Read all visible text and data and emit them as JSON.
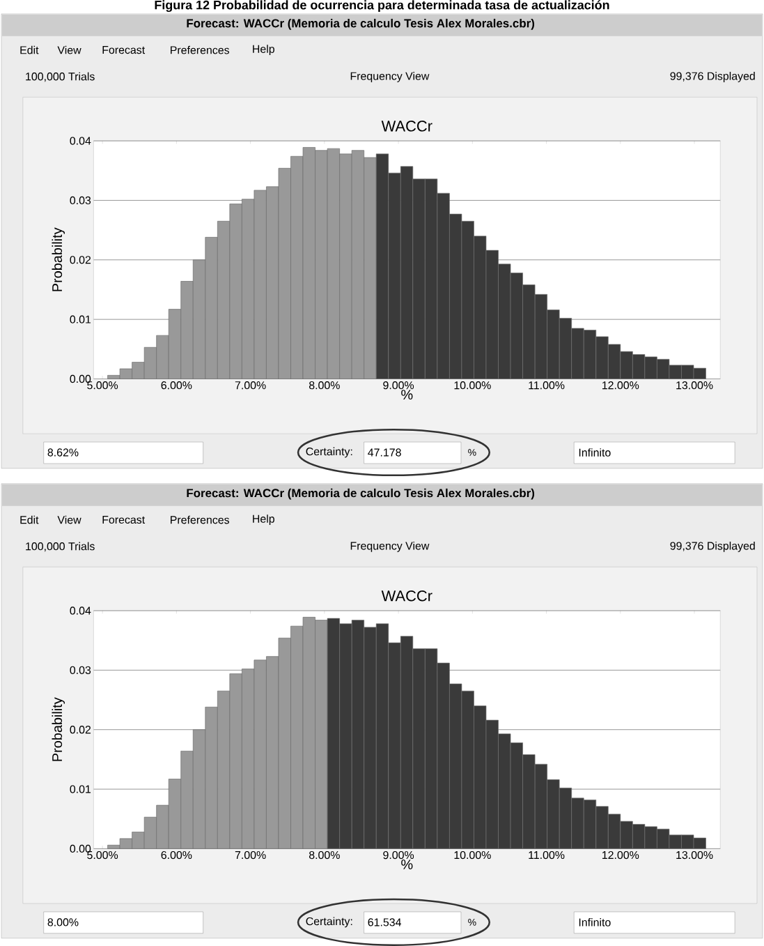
{
  "chart_data": [
    {
      "type": "histogram",
      "title": "WACCr",
      "xlabel": "%",
      "ylabel": "Probability",
      "bins": [
        5.07,
        5.235,
        5.4,
        5.565,
        5.73,
        5.895,
        6.06,
        6.225,
        6.39,
        6.555,
        6.72,
        6.885,
        7.05,
        7.215,
        7.38,
        7.545,
        7.71,
        7.875,
        8.04,
        8.205,
        8.37,
        8.535,
        8.7,
        8.865,
        9.03,
        9.195,
        9.36,
        9.525,
        9.69,
        9.855,
        10.02,
        10.185,
        10.35,
        10.515,
        10.68,
        10.845,
        11.01,
        11.175,
        11.34,
        11.505,
        11.67,
        11.835,
        12.0,
        12.165,
        12.33,
        12.495,
        12.66,
        12.825,
        12.99,
        13.155
      ],
      "values": [
        0.0006,
        0.0017,
        0.0028,
        0.0053,
        0.0073,
        0.0117,
        0.0164,
        0.02,
        0.0238,
        0.0265,
        0.0294,
        0.0302,
        0.0317,
        0.0323,
        0.0354,
        0.0374,
        0.0389,
        0.0384,
        0.0387,
        0.0378,
        0.0384,
        0.0372,
        0.0378,
        0.0346,
        0.0357,
        0.0336,
        0.0336,
        0.0312,
        0.0277,
        0.0265,
        0.024,
        0.0216,
        0.0193,
        0.0178,
        0.0158,
        0.0142,
        0.0116,
        0.0102,
        0.0085,
        0.0082,
        0.0071,
        0.0058,
        0.0046,
        0.0041,
        0.0037,
        0.0033,
        0.0023,
        0.0023,
        0.0018
      ],
      "colors": [
        "#999999",
        "#999999",
        "#999999",
        "#999999",
        "#999999",
        "#999999",
        "#999999",
        "#999999",
        "#999999",
        "#999999",
        "#999999",
        "#999999",
        "#999999",
        "#999999",
        "#999999",
        "#999999",
        "#999999",
        "#999999",
        "#999999",
        "#999999",
        "#999999",
        "#999999",
        "#3a3a3a",
        "#3a3a3a",
        "#3a3a3a",
        "#3a3a3a",
        "#3a3a3a",
        "#3a3a3a",
        "#3a3a3a",
        "#3a3a3a",
        "#3a3a3a",
        "#3a3a3a",
        "#3a3a3a",
        "#3a3a3a",
        "#3a3a3a",
        "#3a3a3a",
        "#3a3a3a",
        "#3a3a3a",
        "#3a3a3a",
        "#3a3a3a",
        "#3a3a3a",
        "#3a3a3a",
        "#3a3a3a",
        "#3a3a3a",
        "#3a3a3a",
        "#3a3a3a",
        "#3a3a3a",
        "#3a3a3a",
        "#3a3a3a"
      ],
      "xlim": [
        4.88,
        13.35
      ],
      "ylim": [
        0,
        0.04
      ],
      "xticks": [
        {
          "value": 5,
          "label": "5.00%"
        },
        {
          "value": 6,
          "label": "6.00%"
        },
        {
          "value": 7,
          "label": "7.00%"
        },
        {
          "value": 8,
          "label": "8.00%"
        },
        {
          "value": 9,
          "label": "9.00%"
        },
        {
          "value": 10,
          "label": "10.00%"
        },
        {
          "value": 11,
          "label": "11.00%"
        },
        {
          "value": 12,
          "label": "12.00%"
        },
        {
          "value": 13,
          "label": "13.00%"
        }
      ],
      "yticks": [
        {
          "value": 0,
          "label": "0.00"
        },
        {
          "value": 0.01,
          "label": "0.01"
        },
        {
          "value": 0.02,
          "label": "0.02"
        },
        {
          "value": 0.03,
          "label": "0.03"
        },
        {
          "value": 0.04,
          "label": "0.04"
        }
      ],
      "grid": "y",
      "annotations": [
        "Figura 12 Probabilidad de ocurrencia para determinada tasa de actualización",
        "Forecast: WACCr (Memoria de calculo Tesis Alex Morales.cbr)",
        "Edit",
        "View",
        "Forecast",
        "Preferences",
        "Help",
        "100,000 Trials",
        "Frequency View",
        "99,376 Displayed",
        "8.62%",
        "Certainty:",
        "47.178",
        "%",
        "Infinito"
      ]
    },
    {
      "type": "histogram",
      "title": "WACCr",
      "xlabel": "%",
      "ylabel": "Probability",
      "bins": [
        5.07,
        5.235,
        5.4,
        5.565,
        5.73,
        5.895,
        6.06,
        6.225,
        6.39,
        6.555,
        6.72,
        6.885,
        7.05,
        7.215,
        7.38,
        7.545,
        7.71,
        7.875,
        8.04,
        8.205,
        8.37,
        8.535,
        8.7,
        8.865,
        9.03,
        9.195,
        9.36,
        9.525,
        9.69,
        9.855,
        10.02,
        10.185,
        10.35,
        10.515,
        10.68,
        10.845,
        11.01,
        11.175,
        11.34,
        11.505,
        11.67,
        11.835,
        12.0,
        12.165,
        12.33,
        12.495,
        12.66,
        12.825,
        12.99,
        13.155
      ],
      "values": [
        0.0006,
        0.0017,
        0.0028,
        0.0053,
        0.0073,
        0.0117,
        0.0164,
        0.02,
        0.0238,
        0.0265,
        0.0294,
        0.0302,
        0.0317,
        0.0323,
        0.0354,
        0.0374,
        0.0389,
        0.0384,
        0.0387,
        0.0378,
        0.0384,
        0.0372,
        0.0378,
        0.0346,
        0.0357,
        0.0336,
        0.0336,
        0.0312,
        0.0277,
        0.0265,
        0.024,
        0.0216,
        0.0193,
        0.0178,
        0.0158,
        0.0142,
        0.0116,
        0.0102,
        0.0085,
        0.0082,
        0.0071,
        0.0058,
        0.0046,
        0.0041,
        0.0037,
        0.0033,
        0.0023,
        0.0023,
        0.0018
      ],
      "colors": [
        "#999999",
        "#999999",
        "#999999",
        "#999999",
        "#999999",
        "#999999",
        "#999999",
        "#999999",
        "#999999",
        "#999999",
        "#999999",
        "#999999",
        "#999999",
        "#999999",
        "#999999",
        "#999999",
        "#999999",
        "#999999",
        "#3a3a3a",
        "#3a3a3a",
        "#3a3a3a",
        "#3a3a3a",
        "#3a3a3a",
        "#3a3a3a",
        "#3a3a3a",
        "#3a3a3a",
        "#3a3a3a",
        "#3a3a3a",
        "#3a3a3a",
        "#3a3a3a",
        "#3a3a3a",
        "#3a3a3a",
        "#3a3a3a",
        "#3a3a3a",
        "#3a3a3a",
        "#3a3a3a",
        "#3a3a3a",
        "#3a3a3a",
        "#3a3a3a",
        "#3a3a3a",
        "#3a3a3a",
        "#3a3a3a",
        "#3a3a3a",
        "#3a3a3a",
        "#3a3a3a",
        "#3a3a3a",
        "#3a3a3a",
        "#3a3a3a",
        "#3a3a3a"
      ],
      "xlim": [
        4.88,
        13.35
      ],
      "ylim": [
        0,
        0.04
      ],
      "xticks": [
        {
          "value": 5,
          "label": "5.00%"
        },
        {
          "value": 6,
          "label": "6.00%"
        },
        {
          "value": 7,
          "label": "7.00%"
        },
        {
          "value": 8,
          "label": "8.00%"
        },
        {
          "value": 9,
          "label": "9.00%"
        },
        {
          "value": 10,
          "label": "10.00%"
        },
        {
          "value": 11,
          "label": "11.00%"
        },
        {
          "value": 12,
          "label": "12.00%"
        },
        {
          "value": 13,
          "label": "13.00%"
        }
      ],
      "yticks": [
        {
          "value": 0,
          "label": "0.00"
        },
        {
          "value": 0.01,
          "label": "0.01"
        },
        {
          "value": 0.02,
          "label": "0.02"
        },
        {
          "value": 0.03,
          "label": "0.03"
        },
        {
          "value": 0.04,
          "label": "0.04"
        }
      ],
      "grid": "y",
      "annotations": [
        "Forecast: WACCr (Memoria de calculo Tesis Alex Morales.cbr)",
        "Edit",
        "View",
        "Forecast",
        "Preferences",
        "Help",
        "100,000 Trials",
        "Frequency View",
        "99,376 Displayed",
        "8.00%",
        "Certainty:",
        "61.534",
        "%",
        "Infinito"
      ]
    }
  ]
}
